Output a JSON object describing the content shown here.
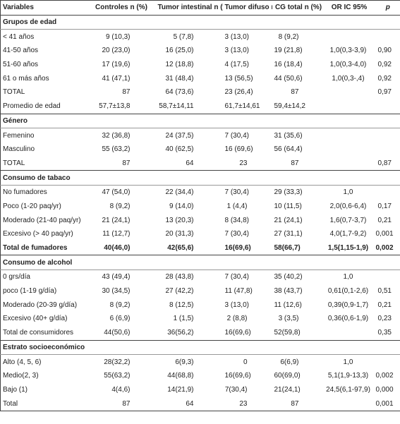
{
  "table": {
    "header": [
      "Variables",
      "Controles n (%)",
      "Tumor intestinal n (%)",
      "Tumor difuso n (%)",
      "CG total n (%)",
      "OR IC 95%",
      "p"
    ],
    "sections": [
      {
        "title": "Grupos de edad",
        "rows": [
          [
            "< 41 años",
            "9 (10,3)",
            "5 (7,8)",
            "3 (13,0)",
            "8 (9,2)",
            null,
            null
          ],
          [
            "41-50 años",
            "20 (23,0)",
            "16 (25,0)",
            "3 (13,0)",
            "19 (21,8)",
            "1,0(0,3-3,9)",
            "0,90"
          ],
          [
            "51-60 años",
            "17 (19,6)",
            "12 (18,8)",
            "4 (17,5)",
            "16 (18,4)",
            "1,0(0,3-4,0)",
            "0,92"
          ],
          [
            "61 o más años",
            "41 (47,1)",
            "31 (48,4)",
            "13 (56,5)",
            "44 (50,6)",
            "1,0(0,3-,4)",
            "0,92"
          ],
          [
            "TOTAL",
            "87",
            "64 (73,6)",
            "23 (26,4)",
            "87",
            null,
            "0,97"
          ],
          [
            "Promedio de edad",
            "57,7±13,8",
            "58,7±14,11",
            "61,7±14,61",
            "59,4±14,2",
            null,
            null
          ]
        ]
      },
      {
        "title": "Género",
        "rows": [
          [
            "Femenino",
            "32 (36,8)",
            "24 (37,5)",
            "7 (30,4)",
            "31 (35,6)",
            null,
            null
          ],
          [
            "Masculino",
            "55 (63,2)",
            "40 (62,5)",
            "16 (69,6)",
            "56 (64,4)",
            null,
            null
          ],
          [
            "TOTAL",
            "87",
            "64",
            "23",
            "87",
            null,
            "0,87"
          ]
        ]
      },
      {
        "title": "Consumo de tabaco",
        "rows": [
          [
            "No fumadores",
            "47 (54,0)",
            "22 (34,4)",
            "7 (30,4)",
            "29 (33,3)",
            "1,0",
            null
          ],
          [
            "Poco (1-20 paq/yr)",
            "8 (9,2)",
            "9 (14,0)",
            "1 (4,4)",
            "10 (11,5)",
            "2,0(0,6-6,4)",
            "0,17"
          ],
          [
            "Moderado (21-40 paq/yr)",
            "21 (24,1)",
            "13 (20,3)",
            "8 (34,8)",
            "21 (24,1)",
            "1,6(0,7-3,7)",
            "0,21"
          ],
          [
            "Excesivo (> 40 paq/yr)",
            "11 (12,7)",
            "20 (31,3)",
            "7 (30,4)",
            "27 (31,1)",
            "4,0(1,7-9,2)",
            "0,001"
          ],
          [
            "Total de fumadores",
            "40(46,0)",
            "42(65,6)",
            "16(69,6)",
            "58(66,7)",
            "1,5(1,15-1,9)",
            "0,002"
          ]
        ]
      },
      {
        "title": "Consumo de alcohol",
        "rows": [
          [
            "0 grs/día",
            "43 (49,4)",
            "28 (43,8)",
            "7 (30,4)",
            "35 (40,2)",
            "1,0",
            null
          ],
          [
            "poco  (1-19 g/día)",
            "30 (34,5)",
            "27 (42,2)",
            "11 (47,8)",
            "38 (43,7)",
            "0,61(0,1-2,6)",
            "0,51"
          ],
          [
            "Moderado (20-39 g/día)",
            "8 (9,2)",
            "8 (12,5)",
            "3 (13,0)",
            "11 (12,6)",
            "0,39(0,9-1,7)",
            "0,21"
          ],
          [
            "Excesivo (40+ g/día)",
            "6 (6,9)",
            "1 (1,5)",
            "2 (8,8)",
            "3 (3,5)",
            "0,36(0,6-1,9)",
            "0,23"
          ],
          [
            "Total de consumidores",
            "44(50,6)",
            "36(56,2)",
            "16(69,6)",
            "52(59,8)",
            null,
            "0,35"
          ]
        ]
      },
      {
        "title": "Estrato socioeconómico",
        "rows": [
          [
            "Alto (4, 5, 6)",
            "28(32,2)",
            "6(9,3)",
            "0",
            "6(6,9)",
            "1,0",
            null
          ],
          [
            "Medio(2, 3)",
            "55(63,2)",
            "44(68,8)",
            "16(69,6)",
            "60(69,0)",
            "5,1(1,9-13,3)",
            "0,002"
          ],
          [
            "Bajo (1)",
            "4(4,6)",
            "14(21,9)",
            "7(30,4)",
            "21(24,1)",
            "24,5(6,1-97,9)",
            "0,000"
          ],
          [
            "Total",
            "87",
            "64",
            "23",
            "87",
            null,
            "0,001"
          ]
        ]
      }
    ]
  }
}
